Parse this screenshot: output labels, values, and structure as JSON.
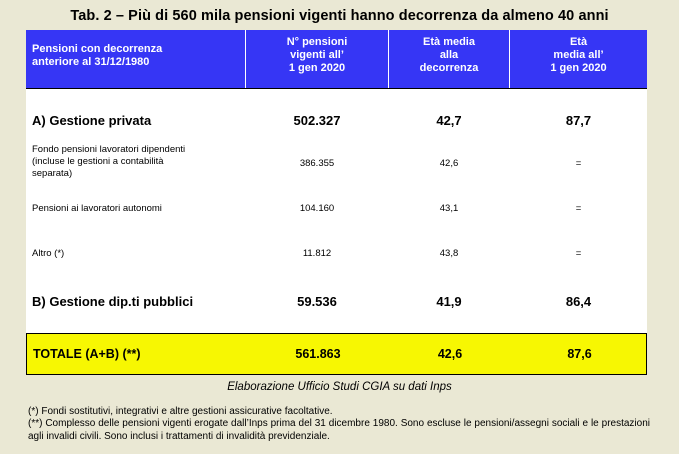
{
  "title": "Tab. 2 – Più di 560 mila pensioni vigenti hanno decorrenza da almeno 40 anni",
  "header": {
    "col0": [
      "Pensioni con decorrenza",
      "anteriore al 31/12/1980"
    ],
    "col1": [
      "N° pensioni",
      "vigenti all’",
      "1 gen 2020"
    ],
    "col2": [
      "Età media",
      "alla",
      "decorrenza"
    ],
    "col3": [
      "Età",
      "media all’",
      "1 gen 2020"
    ]
  },
  "rows": [
    {
      "label": "A) Gestione privata",
      "count": "502.327",
      "age_start": "42,7",
      "age_now": "87,7"
    },
    {
      "label_lines": [
        "Fondo pensioni lavoratori dipendenti",
        "(incluse le gestioni a contabilità",
        "separata)"
      ],
      "count": "386.355",
      "age_start": "42,6",
      "age_now": "="
    },
    {
      "label": "Pensioni ai lavoratori autonomi",
      "count": "104.160",
      "age_start": "43,1",
      "age_now": "="
    },
    {
      "label": "Altro (*)",
      "count": "11.812",
      "age_start": "43,8",
      "age_now": "="
    },
    {
      "label": "B) Gestione dip.ti pubblici",
      "count": "59.536",
      "age_start": "41,9",
      "age_now": "86,4"
    }
  ],
  "total": {
    "label": "TOTALE (A+B) (**)",
    "count": "561.863",
    "age_start": "42,6",
    "age_now": "87,6"
  },
  "source": "Elaborazione Ufficio Studi CGIA su dati Inps",
  "notes": [
    "(*) Fondi sostitutivi, integrativi e altre gestioni assicurative facoltative.",
    "(**) Complesso delle pensioni vigenti erogate dall’Inps prima del 31 dicembre 1980. Sono escluse le pensioni/assegni sociali e le prestazioni agli invalidi civili. Sono inclusi i trattamenti di invalidità previdenziale."
  ]
}
